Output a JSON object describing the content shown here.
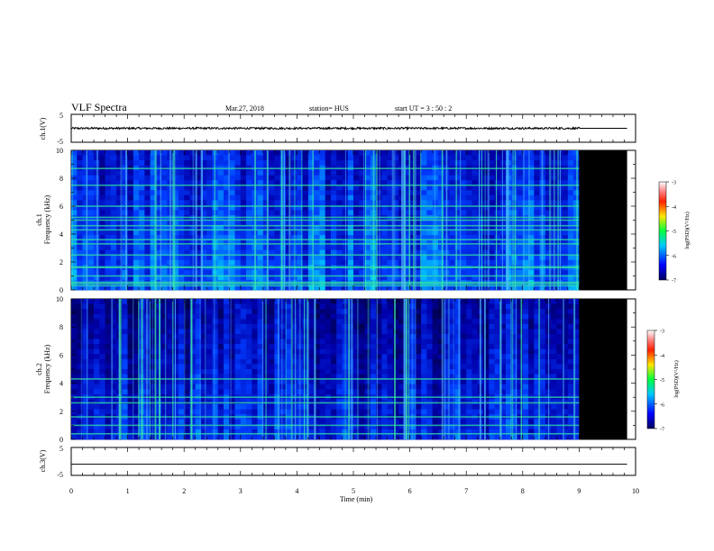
{
  "header": {
    "title": "VLF Spectra",
    "date": "Mar.27, 2018",
    "station": "station= HUS",
    "start": "start  UT =   3  : 50 : 2"
  },
  "chart_data": [
    {
      "id": "ch1-voltage",
      "type": "line",
      "ylabel": "ch.1(V)",
      "ylim": [
        -5,
        5
      ],
      "yticks": [
        "5",
        "-5"
      ],
      "x_unit": "min",
      "xlim": [
        0,
        10
      ],
      "signal": {
        "mean": 0,
        "noise_amplitude": 0.35,
        "noisy_until": 9.0,
        "ends_at": 9.85
      }
    },
    {
      "id": "ch1-spectrogram",
      "type": "heatmap",
      "ylabel": "ch.1\nFrequency  (kHz)",
      "ylim": [
        0,
        10
      ],
      "yticks": [
        "0",
        "2",
        "4",
        "6",
        "8",
        "10"
      ],
      "xlim": [
        0,
        10
      ],
      "data_until": 9.0,
      "colorbar": {
        "label": "log(PSD)(V²/Hz)",
        "range": [
          -7,
          -3
        ],
        "ticks": [
          "-3",
          "-4",
          "-5",
          "-6",
          "-7"
        ]
      },
      "bands_khz": [
        0.3,
        0.45,
        0.55,
        1.0,
        1.6,
        1.65,
        2.5,
        3.3,
        3.6,
        4.3,
        4.6,
        5.0,
        5.2,
        6.0,
        7.5,
        8.7
      ]
    },
    {
      "id": "ch2-spectrogram",
      "type": "heatmap",
      "ylabel": "ch.2\nFrequency  (kHz)",
      "ylim": [
        0,
        10
      ],
      "yticks": [
        "0",
        "2",
        "4",
        "6",
        "8",
        "10"
      ],
      "xlim": [
        0,
        10
      ],
      "data_until": 9.0,
      "colorbar": {
        "label": "log(PSD)(V²/Hz)",
        "range": [
          -7,
          -3
        ],
        "ticks": [
          "-3",
          "-4",
          "-5",
          "-6",
          "-7"
        ]
      },
      "bands_khz": [
        0.4,
        1.0,
        1.6,
        2.6,
        3.0,
        4.3
      ]
    },
    {
      "id": "ch3-voltage",
      "type": "line",
      "ylabel": "ch.3(V)",
      "ylim": [
        -5,
        5
      ],
      "yticks": [
        "5",
        "-5"
      ],
      "xlim": [
        0,
        10
      ],
      "xlabel": "Time  (min)",
      "xticks": [
        "0",
        "1",
        "2",
        "3",
        "4",
        "5",
        "6",
        "7",
        "8",
        "9",
        "10"
      ],
      "signal": {
        "mean": -1.0,
        "from": 0.0,
        "to": 9.85
      }
    }
  ]
}
